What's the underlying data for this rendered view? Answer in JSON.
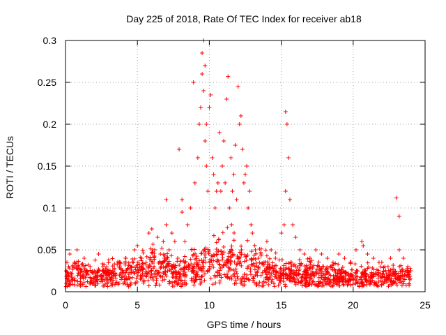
{
  "chart_data": {
    "type": "scatter",
    "title": "Day 225 of 2018, Rate Of TEC Index for receiver ab18",
    "xlabel": "GPS time / hours",
    "ylabel": "ROTI / TECUs",
    "xlim": [
      0,
      25
    ],
    "ylim": [
      0,
      0.3
    ],
    "xticks": [
      "0",
      "5",
      "10",
      "15",
      "20",
      "25"
    ],
    "yticks": [
      "0",
      "0.05",
      "0.1",
      "0.15",
      "0.2",
      "0.25",
      "0.3"
    ],
    "grid": true,
    "legend": "none",
    "marker": "+",
    "series": [
      {
        "color": "#ff0000",
        "x": [
          0.1,
          0.3,
          0.5,
          0.8,
          1.0,
          1.3,
          1.6,
          2.0,
          2.3,
          2.6,
          3.0,
          3.4,
          3.8,
          4.2,
          4.6,
          4.8,
          5.0,
          5.3,
          5.6,
          5.8,
          6.0,
          6.2,
          6.4,
          6.6,
          6.8,
          7.0,
          7.0,
          7.2,
          7.4,
          7.6,
          7.8,
          7.9,
          8.1,
          8.1,
          8.3,
          8.5,
          8.7,
          8.9,
          9.0,
          9.2,
          9.3,
          9.4,
          9.5,
          9.5,
          9.6,
          9.6,
          9.7,
          9.7,
          9.8,
          9.8,
          9.9,
          10.0,
          10.1,
          10.2,
          10.3,
          10.4,
          10.5,
          10.6,
          10.7,
          10.8,
          10.9,
          11.0,
          11.1,
          11.2,
          11.3,
          11.4,
          11.5,
          11.6,
          11.7,
          11.8,
          11.9,
          12.0,
          12.1,
          12.2,
          12.3,
          12.4,
          12.5,
          12.6,
          12.7,
          12.8,
          12.9,
          13.0,
          13.2,
          13.4,
          13.6,
          13.8,
          14.0,
          14.3,
          14.6,
          15.0,
          15.2,
          15.3,
          15.3,
          15.4,
          15.5,
          15.6,
          15.8,
          16.0,
          16.3,
          16.6,
          17.0,
          17.4,
          17.8,
          18.2,
          18.6,
          19.0,
          19.4,
          19.8,
          20.2,
          20.6,
          20.7,
          21.0,
          21.4,
          21.8,
          22.2,
          22.6,
          23.0,
          23.2,
          23.2,
          23.5,
          23.8,
          24.0
        ],
        "y": [
          0.035,
          0.045,
          0.03,
          0.05,
          0.028,
          0.04,
          0.032,
          0.025,
          0.045,
          0.03,
          0.038,
          0.028,
          0.035,
          0.04,
          0.03,
          0.05,
          0.055,
          0.04,
          0.035,
          0.07,
          0.075,
          0.05,
          0.065,
          0.045,
          0.06,
          0.08,
          0.11,
          0.05,
          0.07,
          0.06,
          0.04,
          0.17,
          0.11,
          0.095,
          0.06,
          0.08,
          0.1,
          0.25,
          0.13,
          0.16,
          0.2,
          0.22,
          0.285,
          0.26,
          0.3,
          0.24,
          0.27,
          0.18,
          0.2,
          0.15,
          0.12,
          0.22,
          0.235,
          0.16,
          0.14,
          0.1,
          0.12,
          0.13,
          0.19,
          0.12,
          0.15,
          0.18,
          0.13,
          0.23,
          0.257,
          0.1,
          0.16,
          0.12,
          0.14,
          0.175,
          0.11,
          0.245,
          0.2,
          0.21,
          0.17,
          0.13,
          0.14,
          0.15,
          0.1,
          0.12,
          0.08,
          0.07,
          0.05,
          0.04,
          0.045,
          0.035,
          0.06,
          0.05,
          0.04,
          0.07,
          0.08,
          0.12,
          0.215,
          0.2,
          0.16,
          0.11,
          0.08,
          0.065,
          0.05,
          0.045,
          0.04,
          0.05,
          0.045,
          0.04,
          0.035,
          0.045,
          0.04,
          0.035,
          0.05,
          0.06,
          0.055,
          0.045,
          0.04,
          0.035,
          0.03,
          0.04,
          0.112,
          0.09,
          0.05,
          0.04,
          0.03,
          0.025
        ],
        "baseline": {
          "hours": [
            0,
            1,
            2,
            3,
            4,
            5,
            6,
            7,
            8,
            9,
            10,
            11,
            12,
            13,
            14,
            15,
            16,
            17,
            18,
            19,
            20,
            21,
            22,
            23,
            24
          ],
          "roti": [
            0.018,
            0.02,
            0.018,
            0.017,
            0.02,
            0.025,
            0.028,
            0.026,
            0.022,
            0.028,
            0.035,
            0.04,
            0.04,
            0.03,
            0.025,
            0.022,
            0.02,
            0.018,
            0.017,
            0.016,
            0.016,
            0.016,
            0.016,
            0.015,
            0.015
          ]
        }
      }
    ]
  }
}
